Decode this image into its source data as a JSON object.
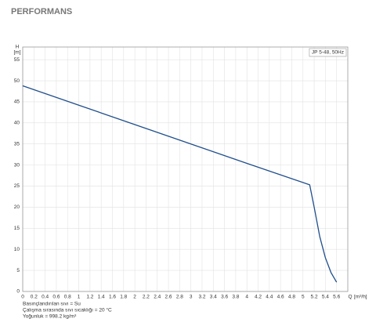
{
  "chart_data": {
    "type": "line",
    "title": "PERFORMANS",
    "y_label": "H",
    "y_unit": "[m]",
    "x_label": "Q",
    "x_unit": "[m³/h]",
    "x": [
      0,
      1,
      2,
      3,
      4,
      5.12,
      5.2,
      5.3,
      5.4,
      5.5,
      5.6
    ],
    "series": [
      {
        "name": "JP 5-48, 50Hz",
        "color": "#1f4e8c",
        "values": [
          48.8,
          44.2,
          39.6,
          35.0,
          30.4,
          25.3,
          20,
          13,
          8,
          4.5,
          2.2
        ]
      }
    ],
    "xlim": [
      0,
      5.8
    ],
    "ylim": [
      0,
      58
    ],
    "xticks": [
      0,
      0.2,
      0.4,
      0.6,
      0.8,
      1,
      1.2,
      1.4,
      1.6,
      1.8,
      2,
      2.2,
      2.4,
      2.6,
      2.8,
      3,
      3.2,
      3.4,
      3.6,
      3.8,
      4,
      4.2,
      4.4,
      4.6,
      4.8,
      5,
      5.2,
      5.4,
      5.6
    ],
    "yticks": [
      0,
      5,
      10,
      15,
      20,
      25,
      30,
      35,
      40,
      45,
      50,
      55
    ],
    "grid": true,
    "legend": "top-right",
    "annotations": [
      "Basınçlandırılan sıvı = Su",
      "Çalışma sırasında sıvı sıcaklığı = 20 °C",
      "Yoğunluk = 998.2 kg/m³"
    ]
  }
}
